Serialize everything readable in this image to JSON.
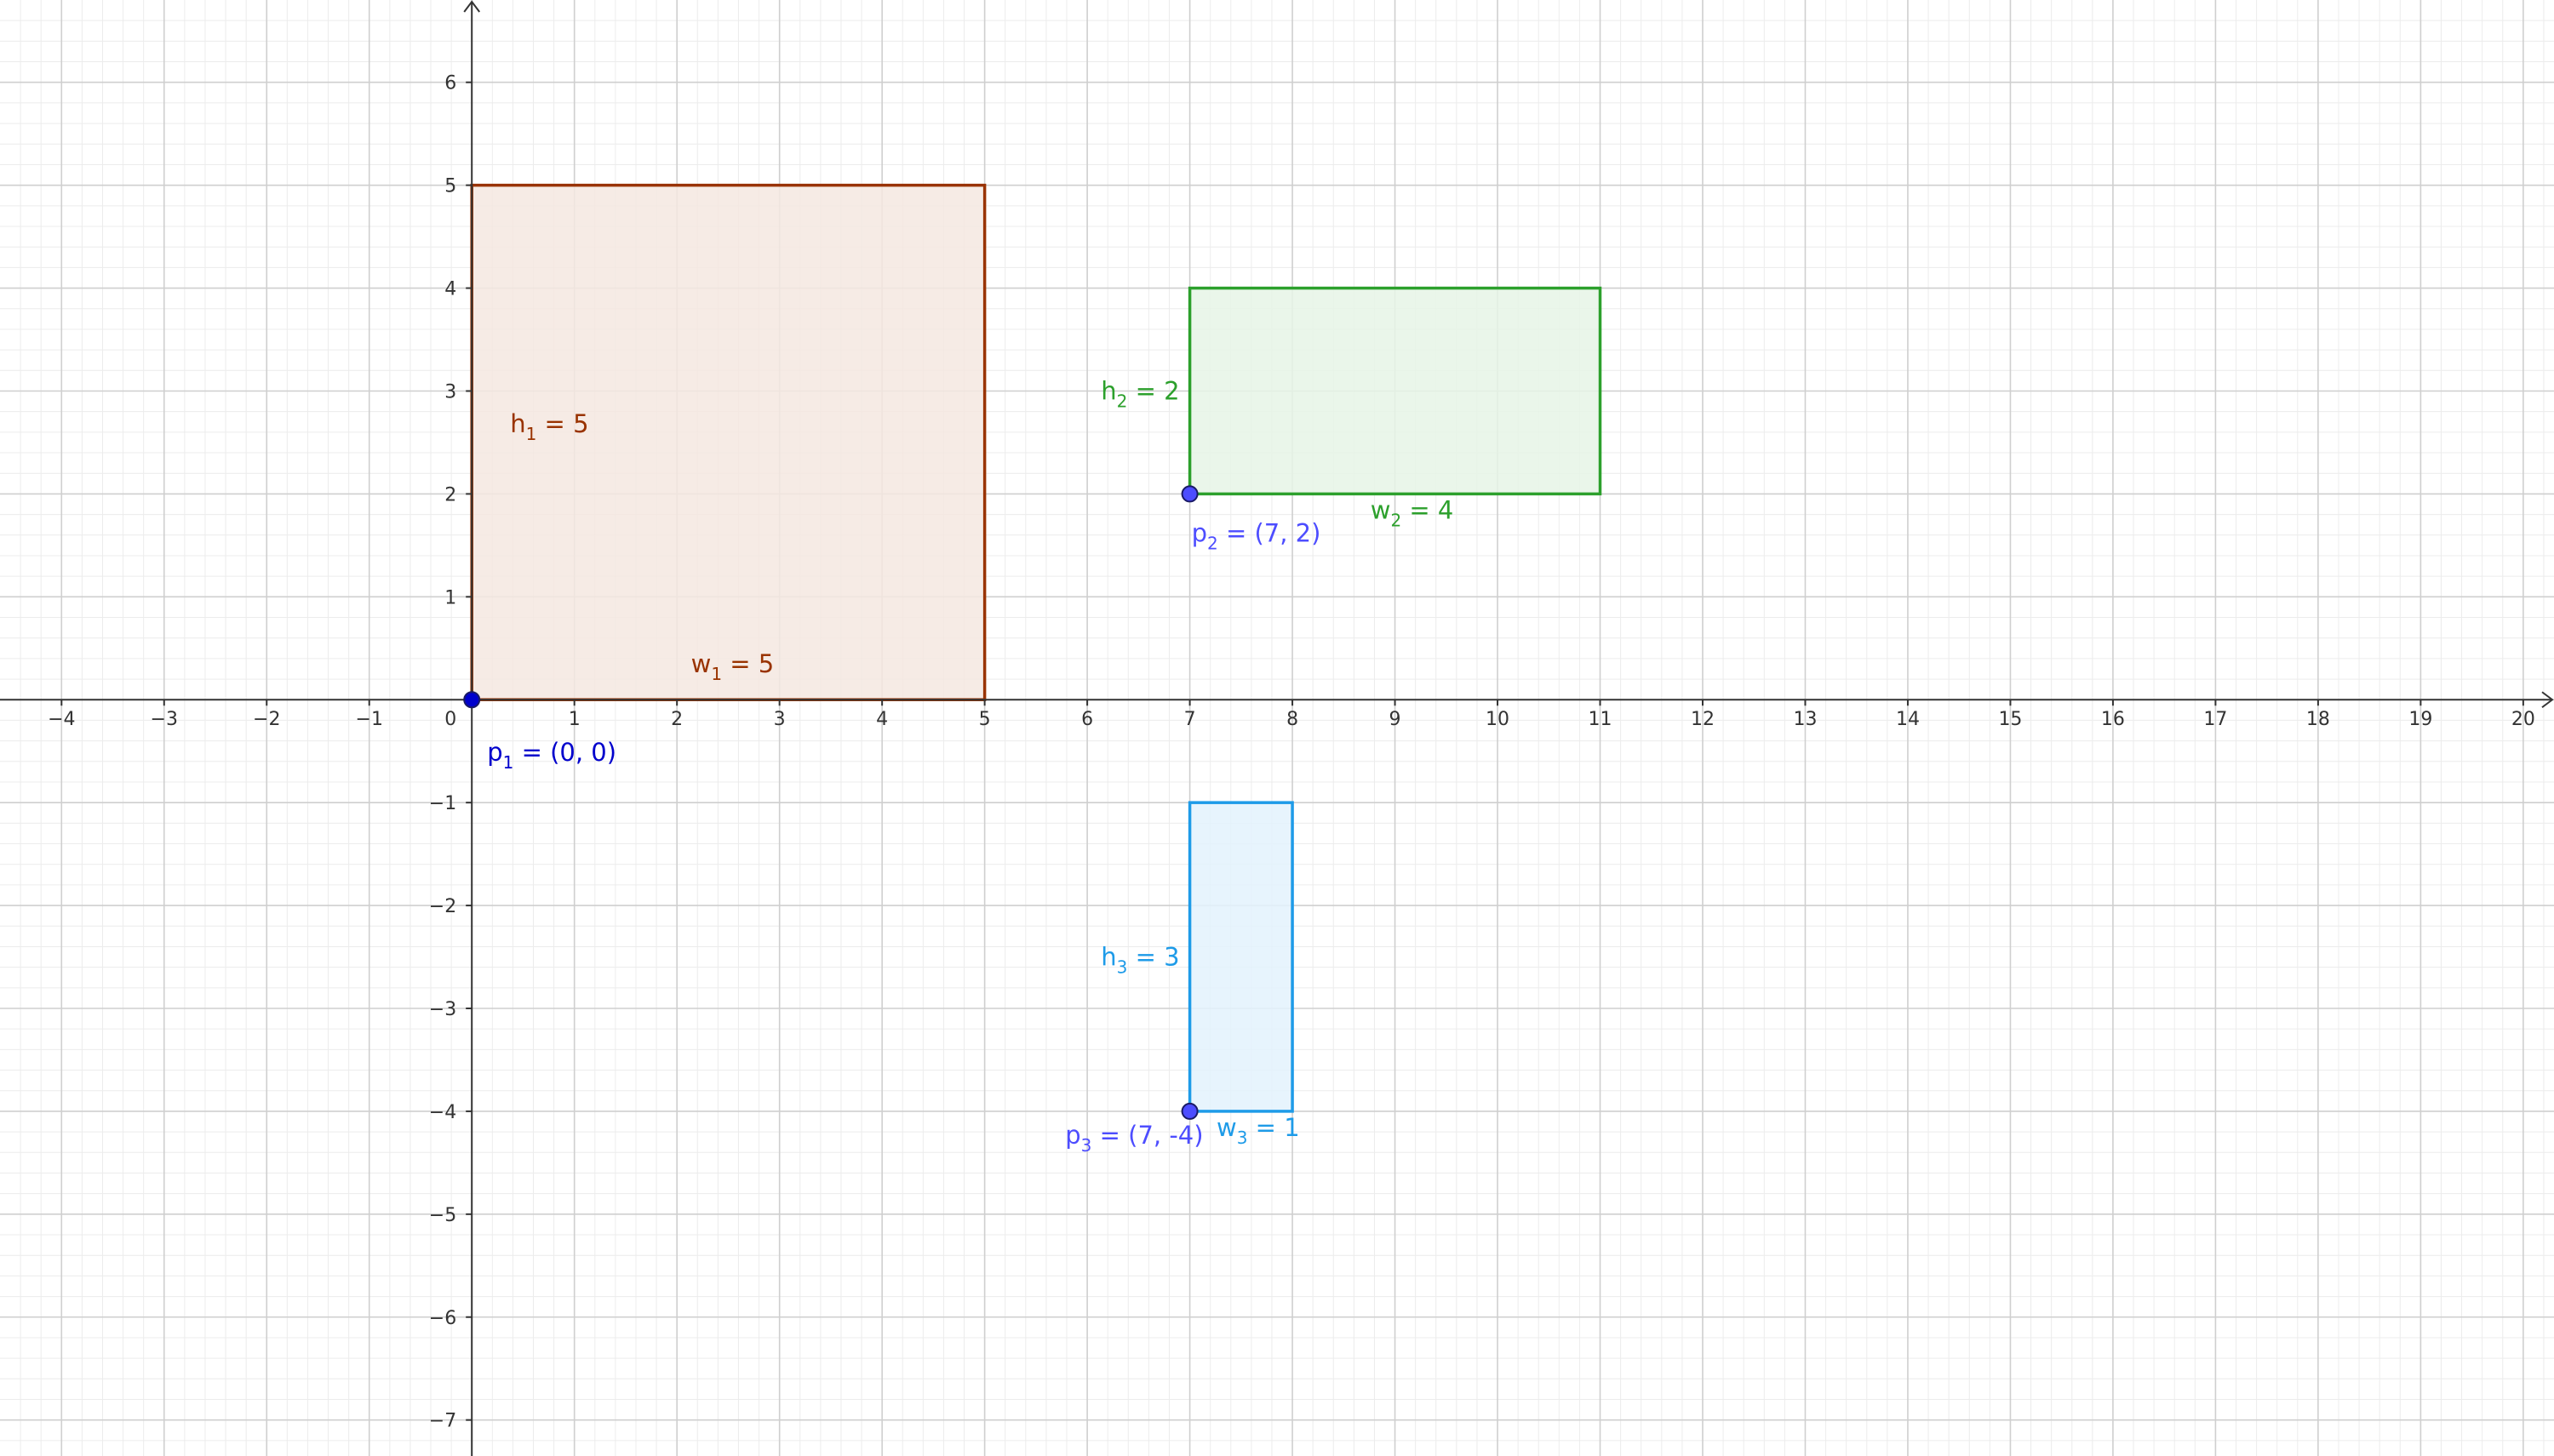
{
  "chart_data": {
    "type": "geometry",
    "title": "",
    "xlabel": "",
    "ylabel": "",
    "xlim": [
      -4.6,
      20.3
    ],
    "ylim": [
      -7.35,
      6.8
    ],
    "grid": true,
    "minor_grid_step": 0.2,
    "x_ticks": [
      "−4",
      "−3",
      "−2",
      "−1",
      "1",
      "2",
      "3",
      "4",
      "5",
      "6",
      "7",
      "8",
      "9",
      "10",
      "11",
      "12",
      "13",
      "14",
      "15",
      "16",
      "17",
      "18",
      "19",
      "20"
    ],
    "y_ticks": [
      "−7",
      "−6",
      "−5",
      "−4",
      "−3",
      "−2",
      "−1",
      "1",
      "2",
      "3",
      "4",
      "5",
      "6"
    ],
    "origin_label": "0",
    "rectangles": [
      {
        "x": 0,
        "y": 0,
        "w": 5,
        "h": 5,
        "stroke": "#993300",
        "fill": "#f5e8e0",
        "h_label": {
          "name": "h",
          "sub": "1",
          "text": " = 5"
        },
        "w_label": {
          "name": "w",
          "sub": "1",
          "text": " = 5"
        }
      },
      {
        "x": 7,
        "y": 2,
        "w": 4,
        "h": 2,
        "stroke": "#2ca02c",
        "fill": "#e6f5e6",
        "h_label": {
          "name": "h",
          "sub": "2",
          "text": " = 2"
        },
        "w_label": {
          "name": "w",
          "sub": "2",
          "text": " = 4"
        }
      },
      {
        "x": 7,
        "y": -4,
        "w": 1,
        "h": 3,
        "stroke": "#1e9be8",
        "fill": "#e3f2fd",
        "h_label": {
          "name": "h",
          "sub": "3",
          "text": " = 3"
        },
        "w_label": {
          "name": "w",
          "sub": "3",
          "text": " = 1"
        }
      }
    ],
    "points": [
      {
        "x": 0,
        "y": 0,
        "color": "#0000cc",
        "label": {
          "name": "p",
          "sub": "1",
          "text": " = (0, 0)"
        }
      },
      {
        "x": 7,
        "y": 2,
        "color": "#4d4dff",
        "label": {
          "name": "p",
          "sub": "2",
          "text": " = (7, 2)"
        }
      },
      {
        "x": 7,
        "y": -4,
        "color": "#4d4dff",
        "label": {
          "name": "p",
          "sub": "3",
          "text": " = (7, -4)"
        }
      }
    ]
  }
}
